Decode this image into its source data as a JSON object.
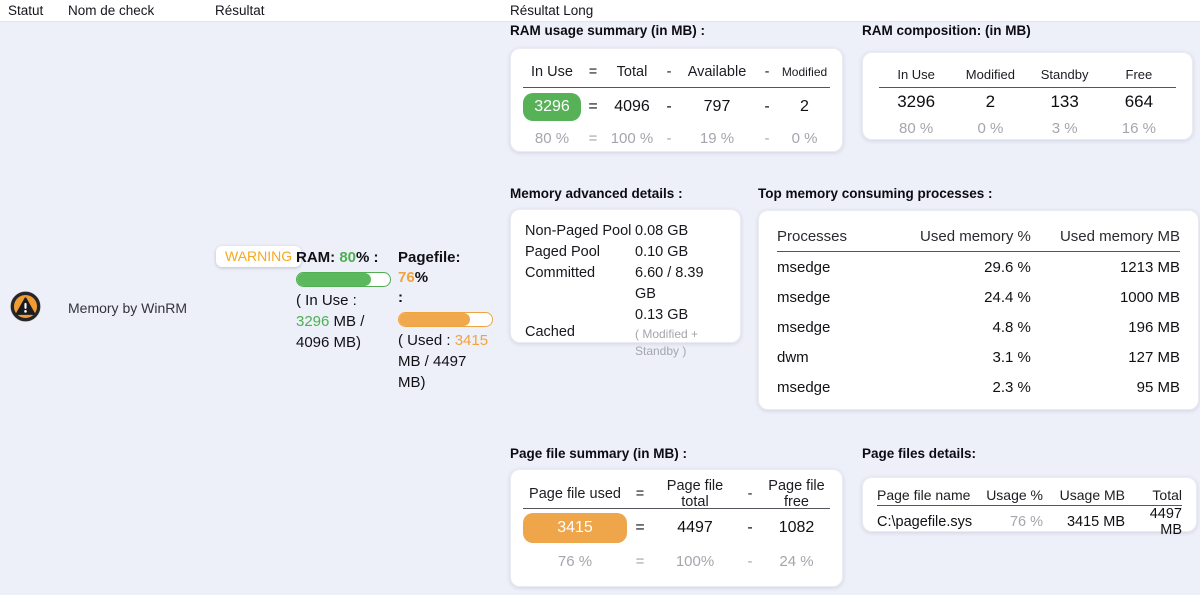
{
  "columns": {
    "statut": "Statut",
    "nom_de_check": "Nom de check",
    "resultat": "Résultat",
    "resultat_long": "Résultat Long"
  },
  "row": {
    "status_icon": "warning-circle-icon",
    "check_name": "Memory by WinRM",
    "status_badge": "WARNING",
    "ram": {
      "label": "RAM: ",
      "percent": "80",
      "suffix": "% :",
      "bar_percent": 80,
      "detail_prefix": "( In Use : ",
      "detail_value": "3296",
      "detail_suffix": " MB / 4096 MB)"
    },
    "pagefile": {
      "label": "Pagefile: ",
      "percent": "76",
      "suffix": "%",
      "colon_line": ":",
      "bar_percent": 76,
      "detail_prefix": "( Used : ",
      "detail_value": "3415",
      "detail_suffix": " MB / 4497 MB)"
    }
  },
  "cards": {
    "ram_summary": {
      "title": "RAM usage summary (in MB) :",
      "headers": [
        "In Use",
        "=",
        "Total",
        "-",
        "Available",
        "-",
        "Modified"
      ],
      "values": [
        "3296",
        "=",
        "4096",
        "-",
        "797",
        "-",
        "2"
      ],
      "percents": [
        "80 %",
        "=",
        "100 %",
        "-",
        "19 %",
        "-",
        "0 %"
      ]
    },
    "ram_composition": {
      "title": "RAM composition: (in MB)",
      "headers": [
        "In Use",
        "Modified",
        "Standby",
        "Free"
      ],
      "values": [
        "3296",
        "2",
        "133",
        "664"
      ],
      "percents": [
        "80 %",
        "0 %",
        "3 %",
        "16 %"
      ]
    },
    "memory_advanced": {
      "title": "Memory advanced details :",
      "rows": [
        {
          "label": "Non-Paged Pool",
          "value": "0.08 GB"
        },
        {
          "label": "Paged Pool",
          "value": "0.10 GB"
        },
        {
          "label": "Committed",
          "value": "6.60 / 8.39 GB"
        },
        {
          "label": "Cached",
          "value": "0.13 GB",
          "note": "( Modified + Standby )"
        }
      ]
    },
    "top_processes": {
      "title": "Top memory consuming processes :",
      "headers": [
        "Processes",
        "Used memory %",
        "Used memory MB"
      ],
      "rows": [
        [
          "msedge",
          "29.6 %",
          "1213 MB"
        ],
        [
          "msedge",
          "24.4 %",
          "1000 MB"
        ],
        [
          "msedge",
          "4.8 %",
          "196 MB"
        ],
        [
          "dwm",
          "3.1 %",
          "127 MB"
        ],
        [
          "msedge",
          "2.3 %",
          "95 MB"
        ]
      ]
    },
    "pagefile_summary": {
      "title": "Page file summary (in MB) :",
      "headers": [
        "Page file used",
        "=",
        "Page file total",
        "-",
        "Page file free"
      ],
      "values": [
        "3415",
        "=",
        "4497",
        "-",
        "1082"
      ],
      "percents": [
        "76 %",
        "=",
        "100%",
        "-",
        "24 %"
      ]
    },
    "pagefile_details": {
      "title": "Page files details:",
      "headers": [
        "Page file name",
        "Usage %",
        "Usage MB",
        "Total"
      ],
      "rows": [
        [
          "C:\\pagefile.sys",
          "76 %",
          "3415 MB",
          "4497 MB"
        ]
      ]
    }
  },
  "colors": {
    "green": "#5cb85c",
    "green_badge": "#57b257",
    "orange": "#f0a84e",
    "orange_badge": "#efa54a",
    "warning_text": "#f8a81f",
    "muted_gray": "#a5a5ad",
    "background": "#edeff9"
  }
}
